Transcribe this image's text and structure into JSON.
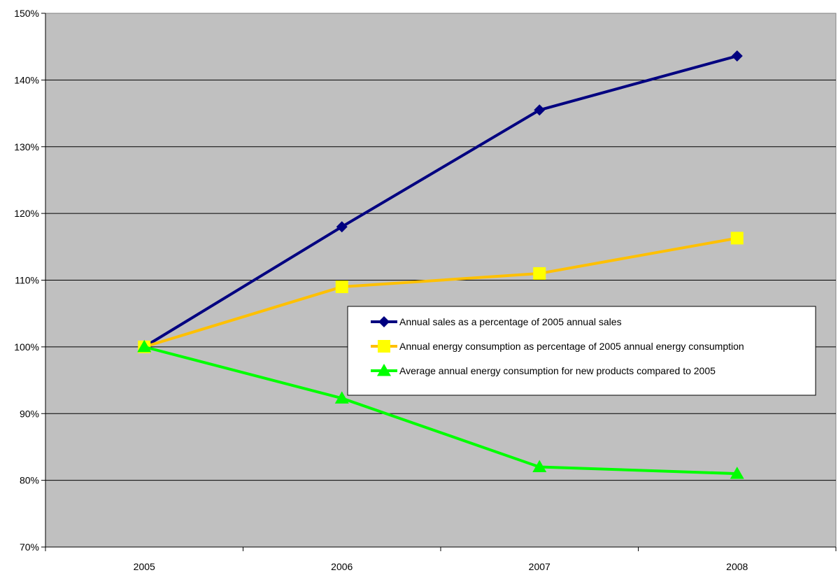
{
  "chart_data": {
    "type": "line",
    "categories": [
      "2005",
      "2006",
      "2007",
      "2008"
    ],
    "ylim": [
      0.7,
      1.5
    ],
    "yticks": [
      "70%",
      "80%",
      "90%",
      "100%",
      "110%",
      "120%",
      "130%",
      "140%",
      "150%"
    ],
    "ytick_values": [
      0.7,
      0.8,
      0.9,
      1.0,
      1.1,
      1.2,
      1.3,
      1.4,
      1.5
    ],
    "grid": true,
    "legend_position": "right-center",
    "plot_background": "#C0C0C0",
    "series": [
      {
        "name": "Annual sales as a percentage of 2005 annual sales",
        "values": [
          1.0,
          1.18,
          1.355,
          1.436
        ],
        "color": "#000080",
        "marker": "diamond"
      },
      {
        "name": "Annual energy consumption as percentage of 2005 annual energy consumption",
        "values": [
          1.0,
          1.09,
          1.11,
          1.163
        ],
        "color": "#FFC000",
        "marker_color": "#FFFF00",
        "marker": "square"
      },
      {
        "name": "Average annual energy consumption for new products compared to 2005",
        "values": [
          1.0,
          0.923,
          0.82,
          0.81
        ],
        "color": "#00FF00",
        "marker": "triangle"
      }
    ]
  }
}
